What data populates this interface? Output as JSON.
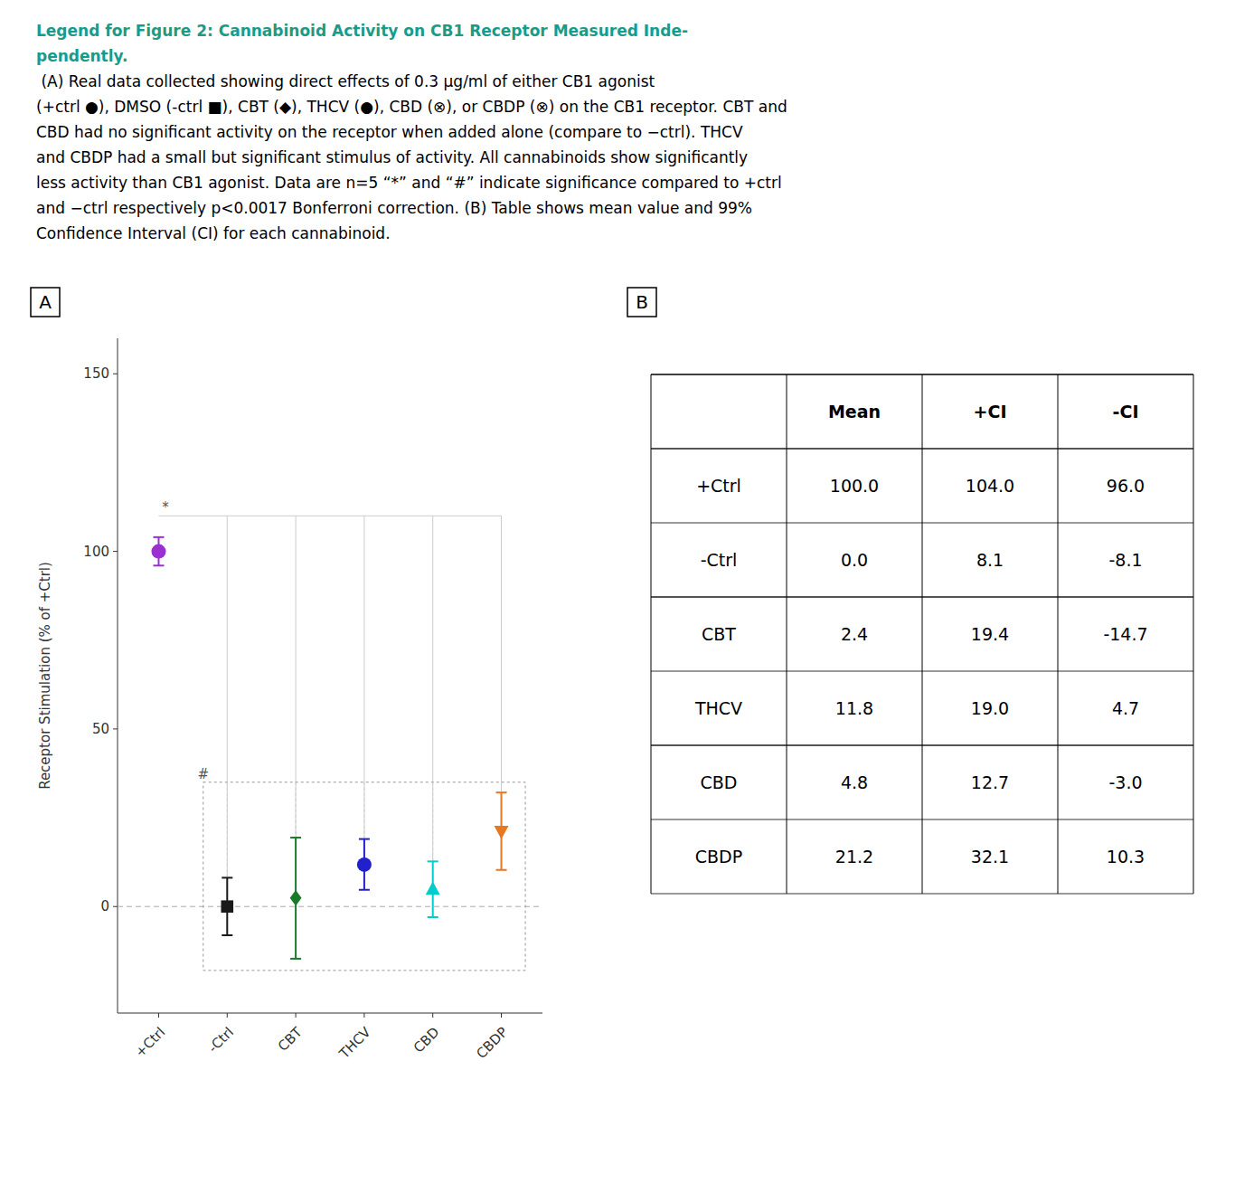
{
  "chart_data": [
    {
      "type": "errorbar",
      "title": "Legend for Figure 2: Cannabinoid Activity on CB1 Receptor Measured Inde-\npendently.",
      "title_color": "#1a9b8a",
      "caption": [
        " (A) Real data collected showing direct effects of 0.3 μg/ml of either CB1 agonist",
        "(+ctrl ●), DMSO (-ctrl ■), CBT (◆), THCV (●), CBD (⊗), or CBDP (⊗) on the CB1 receptor. CBT and",
        "CBD had no significant activity on the receptor when added alone (compare to −ctrl). THCV",
        "and CBDP had a small but significant stimulus of activity. All cannabinoids show significantly",
        "less activity than CB1 agonist. Data are n=5 “*” and “#” indicate significance compared to +ctrl",
        "and −ctrl respectively p<0.0017 Bonferroni correction. (B) Table shows mean value and 99%",
        "Confidence Interval (CI) for each cannabinoid."
      ],
      "panel_label": "A",
      "categories": [
        "+Ctrl",
        "-Ctrl",
        "CBT",
        "THCV",
        "CBD",
        "CBDP"
      ],
      "values": [
        100.0,
        0.0,
        2.4,
        11.8,
        4.8,
        21.2
      ],
      "ci_upper": [
        104.0,
        8.1,
        19.4,
        19.0,
        12.7,
        32.1
      ],
      "ci_lower": [
        96.0,
        -8.1,
        -14.7,
        4.7,
        -3.0,
        10.3
      ],
      "colors": [
        "#9b30d0",
        "#1a1a1a",
        "#1a7a2a",
        "#2020cc",
        "#00cccc",
        "#e87820"
      ],
      "markers": [
        "circle",
        "square",
        "diamond",
        "circle",
        "triangle-up",
        "triangle-down"
      ],
      "ylabel": "Receptor Stimulation (% of +Ctrl)",
      "ylim": [
        -30,
        160
      ],
      "yticks": [
        0,
        50,
        100,
        150
      ],
      "grid": false,
      "reference_lines": [
        {
          "y": 110.0,
          "line_style": "solid"
        },
        {
          "y": 0,
          "line_style": "dashed"
        }
      ],
      "box": {
        "y_bottom": -18,
        "y_top": 35
      },
      "annotations": [
        {
          "text": "*",
          "category": "+Ctrl"
        },
        {
          "text": "#",
          "category": "-Ctrl"
        }
      ]
    },
    {
      "type": "table",
      "panel_label": "B",
      "columns": [
        "Mean",
        "+CI",
        "-CI"
      ],
      "rows": [
        "+Ctrl",
        "-Ctrl",
        "CBT",
        "THCV",
        "CBD",
        "CBDP"
      ],
      "cells": [
        [
          "100.0",
          "104.0",
          "96.0"
        ],
        [
          "0.0",
          "8.1",
          "-8.1"
        ],
        [
          "2.4",
          "19.4",
          "-14.7"
        ],
        [
          "11.8",
          "19.0",
          "4.7"
        ],
        [
          "4.8",
          "12.7",
          "-3.0"
        ],
        [
          "21.2",
          "32.1",
          "10.3"
        ]
      ]
    }
  ]
}
